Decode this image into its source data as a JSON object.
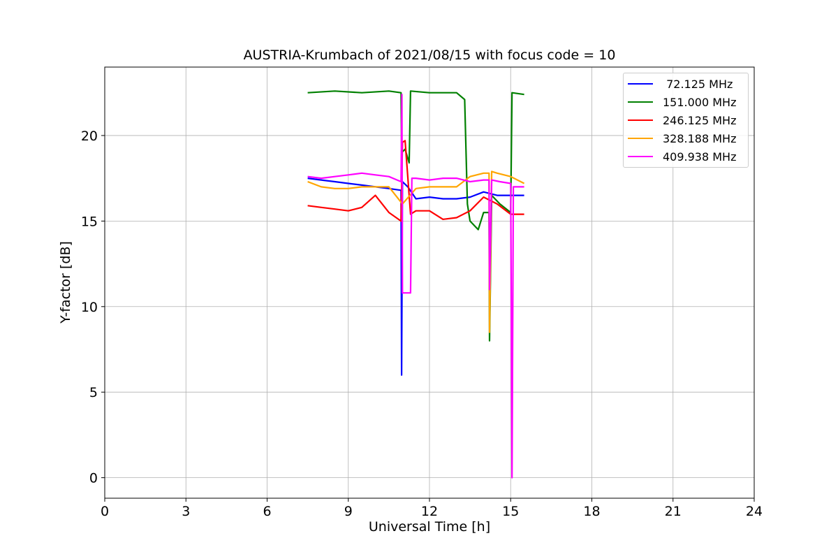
{
  "chart_data": {
    "type": "line",
    "title": "AUSTRIA-Krumbach of 2021/08/15 with focus code = 10",
    "xlabel": "Universal Time [h]",
    "ylabel": "Y-factor [dB]",
    "xlim": [
      0,
      24
    ],
    "ylim": [
      -1.2,
      24
    ],
    "xticks": [
      0,
      3,
      6,
      9,
      12,
      15,
      18,
      21,
      24
    ],
    "xtick_labels": [
      "0",
      "3",
      "6",
      "9",
      "12",
      "15",
      "18",
      "21",
      "24"
    ],
    "yticks": [
      0,
      5,
      10,
      15,
      20
    ],
    "ytick_labels": [
      "0",
      "5",
      "10",
      "15",
      "20"
    ],
    "grid": true,
    "legend_position": "top-right",
    "series": [
      {
        "name": " 72.125 MHz",
        "color": "#0000ff",
        "x": [
          7.5,
          8.0,
          8.5,
          9.0,
          9.5,
          10.0,
          10.5,
          10.95,
          10.97,
          11.0,
          11.2,
          11.5,
          12.0,
          12.5,
          13.0,
          13.5,
          14.0,
          14.5,
          15.0,
          15.5
        ],
        "y": [
          17.5,
          17.4,
          17.3,
          17.2,
          17.1,
          17.0,
          16.9,
          16.8,
          6.0,
          17.3,
          17.0,
          16.3,
          16.4,
          16.3,
          16.3,
          16.4,
          16.7,
          16.5,
          16.5,
          16.5
        ]
      },
      {
        "name": "151.000 MHz",
        "color": "#008000",
        "x": [
          7.5,
          8.5,
          9.5,
          10.5,
          10.95,
          10.97,
          11.1,
          11.25,
          11.3,
          12.0,
          13.0,
          13.3,
          13.4,
          13.5,
          13.8,
          14.0,
          14.2,
          14.22,
          14.3,
          14.6,
          15.0,
          15.05,
          15.5
        ],
        "y": [
          22.5,
          22.6,
          22.5,
          22.6,
          22.5,
          19.0,
          19.2,
          18.4,
          22.6,
          22.5,
          22.5,
          22.1,
          16.0,
          15.0,
          14.5,
          15.5,
          15.5,
          8.0,
          16.5,
          16.0,
          15.5,
          22.5,
          22.4
        ]
      },
      {
        "name": "246.125 MHz",
        "color": "#ff0000",
        "x": [
          7.5,
          8.0,
          8.5,
          9.0,
          9.5,
          10.0,
          10.5,
          10.95,
          11.0,
          11.1,
          11.3,
          11.5,
          12.0,
          12.5,
          13.0,
          13.5,
          14.0,
          14.5,
          15.0,
          15.5
        ],
        "y": [
          15.9,
          15.8,
          15.7,
          15.6,
          15.8,
          16.5,
          15.5,
          15.0,
          19.6,
          19.7,
          15.4,
          15.6,
          15.6,
          15.1,
          15.2,
          15.6,
          16.4,
          16.0,
          15.4,
          15.4
        ]
      },
      {
        "name": "328.188 MHz",
        "color": "#ffa500",
        "x": [
          7.5,
          8.0,
          8.5,
          9.0,
          9.5,
          10.0,
          10.5,
          11.0,
          11.5,
          12.0,
          12.5,
          13.0,
          13.5,
          14.0,
          14.2,
          14.22,
          14.3,
          14.5,
          15.0,
          15.5
        ],
        "y": [
          17.3,
          17.0,
          16.9,
          16.9,
          17.0,
          17.0,
          17.0,
          16.0,
          16.9,
          17.0,
          17.0,
          17.0,
          17.6,
          17.8,
          17.8,
          8.5,
          17.9,
          17.8,
          17.6,
          17.2
        ]
      },
      {
        "name": "409.938 MHz",
        "color": "#ff00ff",
        "x": [
          7.5,
          8.0,
          8.5,
          9.0,
          9.5,
          10.0,
          10.5,
          10.95,
          10.98,
          11.0,
          11.3,
          11.35,
          11.5,
          12.0,
          12.5,
          13.0,
          13.5,
          14.0,
          14.2,
          14.22,
          14.3,
          14.6,
          15.0,
          15.05,
          15.1,
          15.5
        ],
        "y": [
          17.6,
          17.5,
          17.6,
          17.7,
          17.8,
          17.7,
          17.6,
          17.3,
          22.4,
          10.8,
          10.8,
          17.5,
          17.5,
          17.4,
          17.5,
          17.5,
          17.3,
          17.4,
          17.4,
          11.0,
          17.4,
          17.3,
          17.2,
          0.0,
          17.0,
          17.0
        ]
      }
    ]
  }
}
